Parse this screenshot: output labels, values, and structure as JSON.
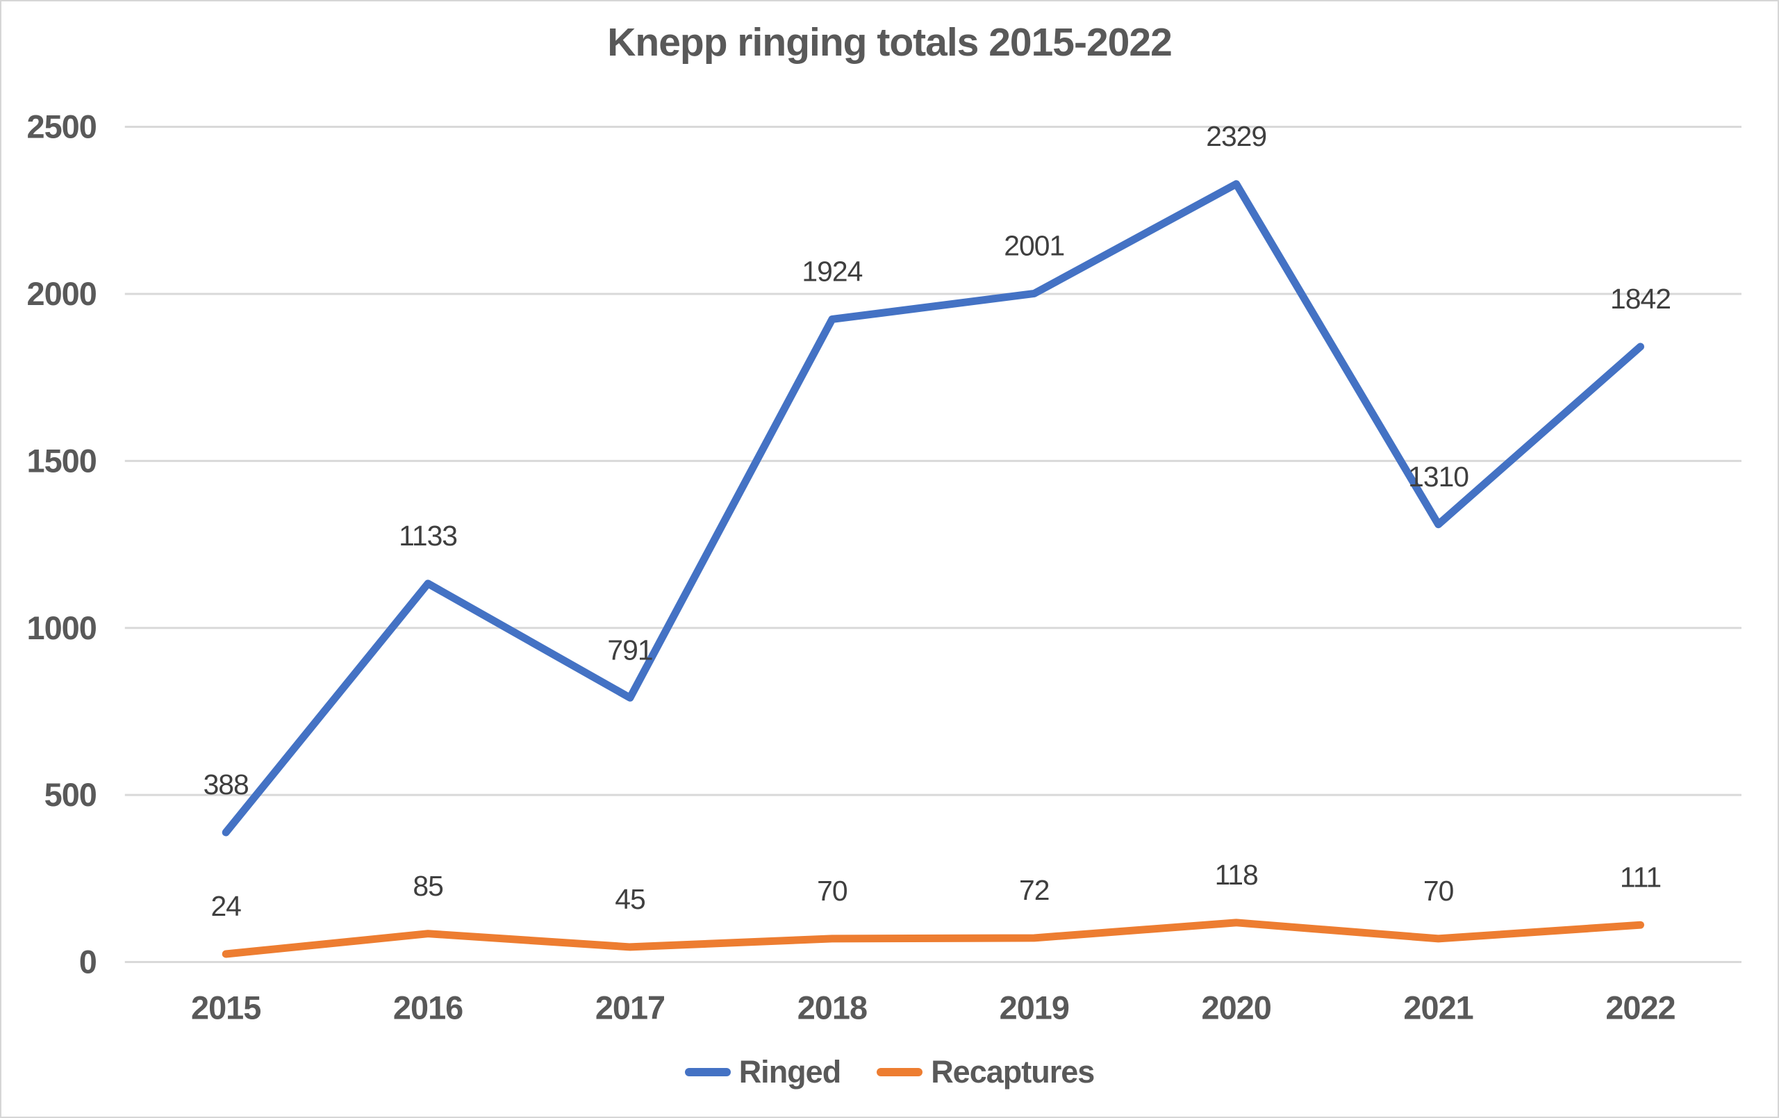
{
  "title": "Knepp ringing totals 2015-2022",
  "legend": {
    "items": [
      {
        "label": "Ringed",
        "color": "#4472C4"
      },
      {
        "label": "Recaptures",
        "color": "#ED7D31"
      }
    ]
  },
  "colors": {
    "gridline": "#d9d9d9",
    "axis_label": "#595959",
    "data_label": "#3f3f3f",
    "background": "#ffffff",
    "border": "#d6d6d6"
  },
  "chart_data": {
    "type": "line",
    "title": "Knepp ringing totals 2015-2022",
    "categories": [
      "2015",
      "2016",
      "2017",
      "2018",
      "2019",
      "2020",
      "2021",
      "2022"
    ],
    "series": [
      {
        "name": "Ringed",
        "color": "#4472C4",
        "values": [
          388,
          1133,
          791,
          1924,
          2001,
          2329,
          1310,
          1842
        ]
      },
      {
        "name": "Recaptures",
        "color": "#ED7D31",
        "values": [
          24,
          85,
          45,
          70,
          72,
          118,
          70,
          111
        ]
      }
    ],
    "xlabel": "",
    "ylabel": "",
    "ylim": [
      0,
      2500
    ],
    "yticks": [
      0,
      500,
      1000,
      1500,
      2000,
      2500
    ],
    "grid": true,
    "data_labels": true,
    "legend_position": "bottom"
  }
}
